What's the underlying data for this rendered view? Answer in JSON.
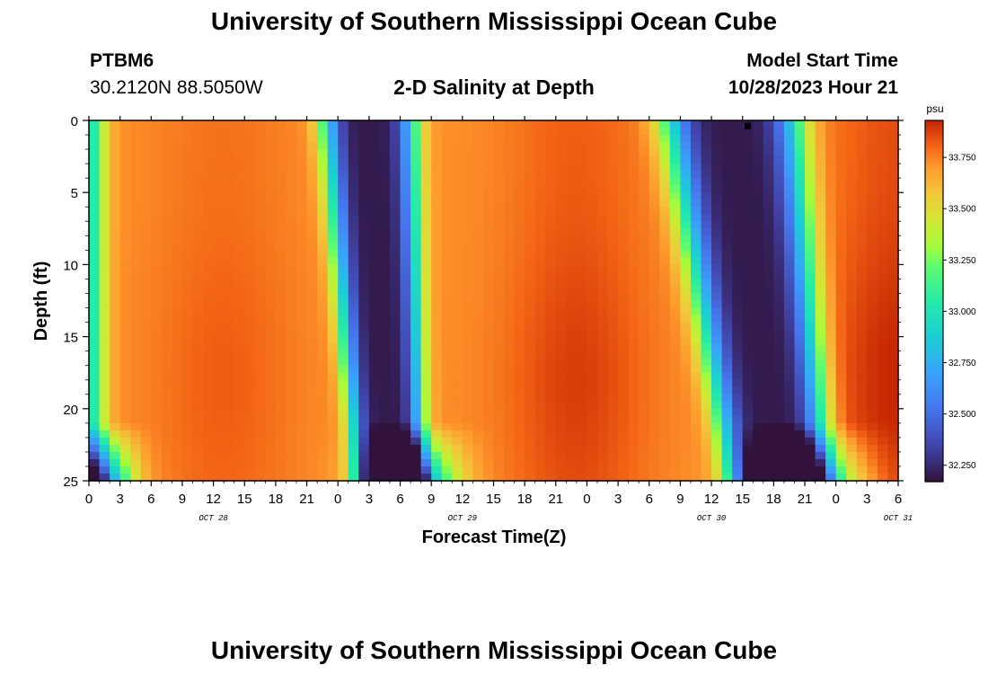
{
  "header": {
    "title": "University of Southern Mississippi Ocean Cube",
    "station": "PTBM6",
    "coords": "30.2120N  88.5050W",
    "plot_title": "2-D Salinity at Depth",
    "model_label": "Model Start Time",
    "model_time": "10/28/2023 Hour 21"
  },
  "footer": {
    "title": "University of Southern Mississippi Ocean Cube"
  },
  "chart_data": {
    "type": "heatmap",
    "title": "2-D Salinity at Depth",
    "xlabel": "Forecast Time(Z)",
    "ylabel": "Depth (ft)",
    "x_ticks": [
      "0",
      "3",
      "6",
      "9",
      "12",
      "15",
      "18",
      "21",
      "0",
      "3",
      "6",
      "9",
      "12",
      "15",
      "18",
      "21",
      "0",
      "3",
      "6",
      "9",
      "12",
      "15",
      "18",
      "21",
      "0",
      "3",
      "6"
    ],
    "x_hours_from_start": [
      0,
      3,
      6,
      9,
      12,
      15,
      18,
      21,
      24,
      27,
      30,
      33,
      36,
      39,
      42,
      45,
      48,
      51,
      54,
      57,
      60,
      63,
      66,
      69,
      72,
      75,
      78
    ],
    "date_labels": [
      {
        "label": "OCT 28",
        "hour": 12
      },
      {
        "label": "OCT 29",
        "hour": 36
      },
      {
        "label": "OCT 30",
        "hour": 60
      },
      {
        "label": "OCT 31",
        "hour": 78
      }
    ],
    "y_ticks": [
      "0",
      "5",
      "10",
      "15",
      "20",
      "25"
    ],
    "ylim": [
      0,
      25
    ],
    "xlim": [
      0,
      78
    ],
    "colorbar": {
      "unit": "psu",
      "ticks": [
        "32.250",
        "32.500",
        "32.750",
        "33.000",
        "33.250",
        "33.500",
        "33.750"
      ],
      "range": [
        32.17,
        33.93
      ]
    },
    "low_salinity_bands": [
      {
        "center_surface_hour": 27,
        "center_bottom_hour": 29,
        "half_width": 4.5,
        "min": 32.2
      },
      {
        "center_surface_hour": 62,
        "center_bottom_hour": 66.5,
        "half_width": 6.5,
        "min": 32.2
      }
    ],
    "high_salinity_cores": [
      {
        "center_hour": 13,
        "max": 33.82
      },
      {
        "center_hour": 47,
        "max": 33.88
      },
      {
        "center_hour": 78,
        "max": 33.93
      }
    ],
    "marker": {
      "hour": 63.5,
      "depth": 0.2
    }
  }
}
